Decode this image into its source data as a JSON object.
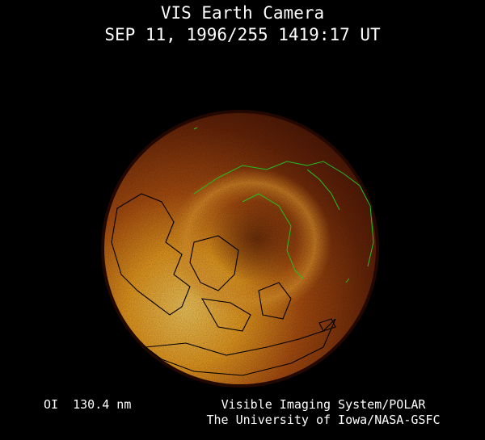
{
  "header": {
    "title": "VIS Earth Camera",
    "subtitle": "SEP 11, 1996/255 1419:17 UT"
  },
  "footer": {
    "wavelength": "OI  130.4 nm",
    "credit_line1": "Visible Imaging System/POLAR",
    "credit_line2": "The University of Iowa/NASA-GSFC"
  },
  "colors": {
    "background": "#000000",
    "text": "#ffffff",
    "dayside_coastline": "#000000",
    "nightside_coastline": "#22c022",
    "aurora_bright": "#ffc040",
    "disk_dark": "#5a1a05"
  }
}
